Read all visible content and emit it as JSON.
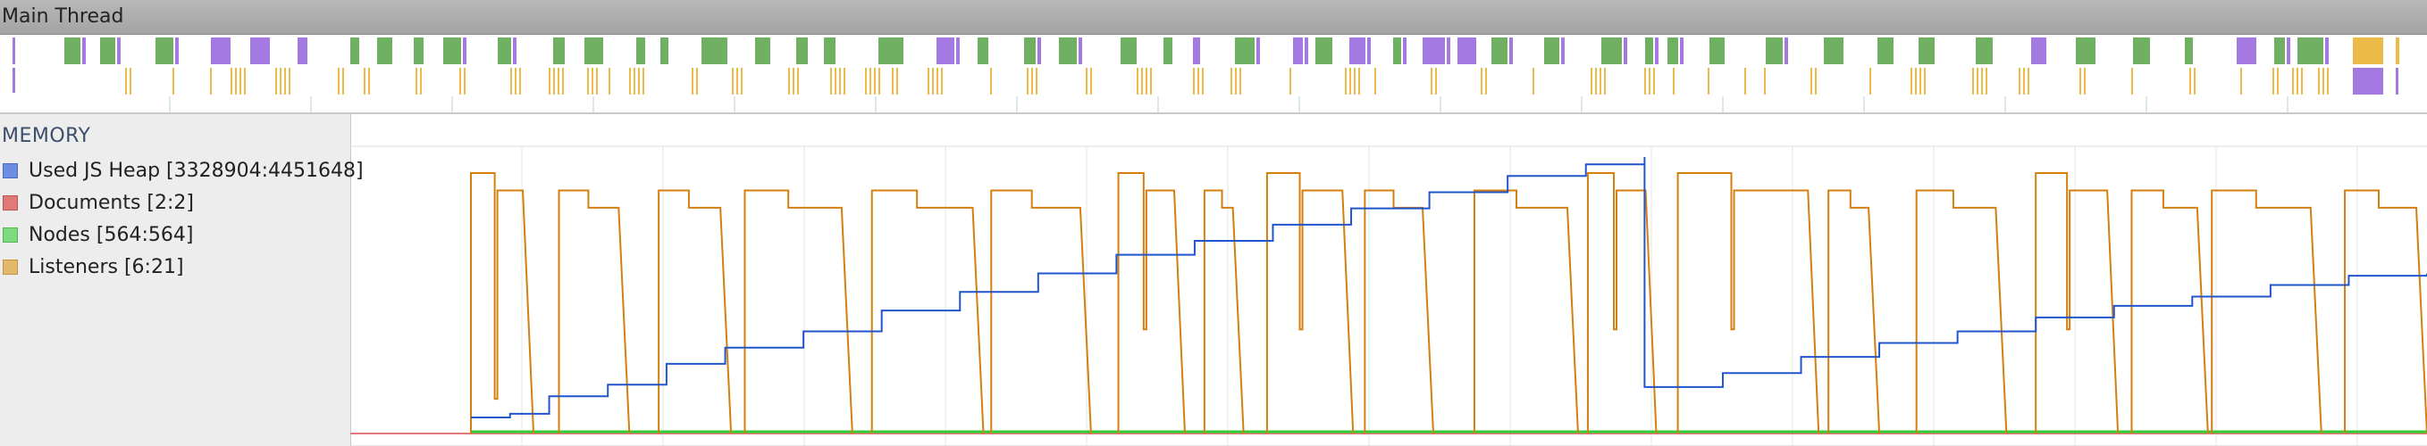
{
  "main_thread": {
    "label": "Main Thread"
  },
  "memory": {
    "header": "MEMORY",
    "legend": [
      {
        "label": "Used JS Heap [3328904:4451648]",
        "color": "#6d8ee0",
        "border": "#4b6cc6",
        "line_color": "#2255cc"
      },
      {
        "label": "Documents [2:2]",
        "color": "#e07a78",
        "border": "#c05452",
        "line_color": "#e07a78"
      },
      {
        "label": "Nodes [564:564]",
        "color": "#7fd97f",
        "border": "#4fb84f",
        "line_color": "#33cc33"
      },
      {
        "label": "Listeners [6:21]",
        "color": "#e2b96b",
        "border": "#c4953d",
        "line_color": "#d47f10"
      }
    ]
  },
  "colors": {
    "task_green": "#6fb063",
    "task_purple": "#a47ae2",
    "task_yellow": "#ecbb47",
    "heap_line": "#2255cc",
    "listeners_line": "#d47f10",
    "nodes_line": "#33cc33"
  },
  "chart_data": {
    "type": "line",
    "x_unit": "normalized time (0-1)",
    "ylim_heap": [
      3328904,
      4451648
    ],
    "ylim_listeners": [
      6,
      21
    ],
    "series": [
      {
        "name": "Used JS Heap",
        "points": [
          [
            0.0,
            3328904
          ],
          [
            0.0,
            3328904
          ],
          [
            0.02,
            3345000
          ],
          [
            0.04,
            3420000
          ],
          [
            0.07,
            3470000
          ],
          [
            0.1,
            3560000
          ],
          [
            0.13,
            3630000
          ],
          [
            0.17,
            3700000
          ],
          [
            0.21,
            3790000
          ],
          [
            0.25,
            3870000
          ],
          [
            0.29,
            3950000
          ],
          [
            0.33,
            4030000
          ],
          [
            0.37,
            4090000
          ],
          [
            0.41,
            4160000
          ],
          [
            0.45,
            4230000
          ],
          [
            0.49,
            4300000
          ],
          [
            0.53,
            4370000
          ],
          [
            0.57,
            4420000
          ],
          [
            0.6,
            4451648
          ],
          [
            0.6,
            3460000
          ],
          [
            0.64,
            3520000
          ],
          [
            0.68,
            3590000
          ],
          [
            0.72,
            3650000
          ],
          [
            0.76,
            3700000
          ],
          [
            0.8,
            3760000
          ],
          [
            0.84,
            3810000
          ],
          [
            0.88,
            3850000
          ],
          [
            0.92,
            3900000
          ],
          [
            0.96,
            3940000
          ],
          [
            1.0,
            3950000
          ]
        ]
      },
      {
        "name": "Listeners",
        "cycles": [
          {
            "s": 0.0,
            "e": 0.032,
            "h": 21,
            "d": 8
          },
          {
            "s": 0.045,
            "e": 0.081,
            "h": 20,
            "d": 20
          },
          {
            "s": 0.096,
            "e": 0.133,
            "h": 20,
            "d": 20
          },
          {
            "s": 0.14,
            "e": 0.195,
            "h": 20,
            "d": 20
          },
          {
            "s": 0.205,
            "e": 0.262,
            "h": 20,
            "d": 20
          },
          {
            "s": 0.266,
            "e": 0.317,
            "h": 20,
            "d": 20
          },
          {
            "s": 0.331,
            "e": 0.365,
            "h": 21,
            "d": 12
          },
          {
            "s": 0.375,
            "e": 0.395,
            "h": 20,
            "d": 20
          },
          {
            "s": 0.407,
            "e": 0.451,
            "h": 21,
            "d": 12
          },
          {
            "s": 0.457,
            "e": 0.492,
            "h": 20,
            "d": 20
          },
          {
            "s": 0.513,
            "e": 0.566,
            "h": 20,
            "d": 20
          },
          {
            "s": 0.571,
            "e": 0.606,
            "h": 21,
            "d": 12
          },
          {
            "s": 0.617,
            "e": 0.689,
            "h": 21,
            "d": 12
          },
          {
            "s": 0.694,
            "e": 0.72,
            "h": 20,
            "d": 20
          },
          {
            "s": 0.739,
            "e": 0.785,
            "h": 20,
            "d": 20
          },
          {
            "s": 0.8,
            "e": 0.842,
            "h": 21,
            "d": 12
          },
          {
            "s": 0.849,
            "e": 0.888,
            "h": 20,
            "d": 20
          },
          {
            "s": 0.89,
            "e": 0.946,
            "h": 20,
            "d": 20
          },
          {
            "s": 0.958,
            "e": 1.0,
            "h": 20,
            "d": 20
          }
        ]
      },
      {
        "name": "Nodes",
        "points": [
          [
            0.0,
            564
          ],
          [
            1.0,
            564
          ]
        ]
      },
      {
        "name": "Documents",
        "points": [
          [
            0.0,
            2
          ],
          [
            1.0,
            2
          ]
        ]
      }
    ]
  }
}
